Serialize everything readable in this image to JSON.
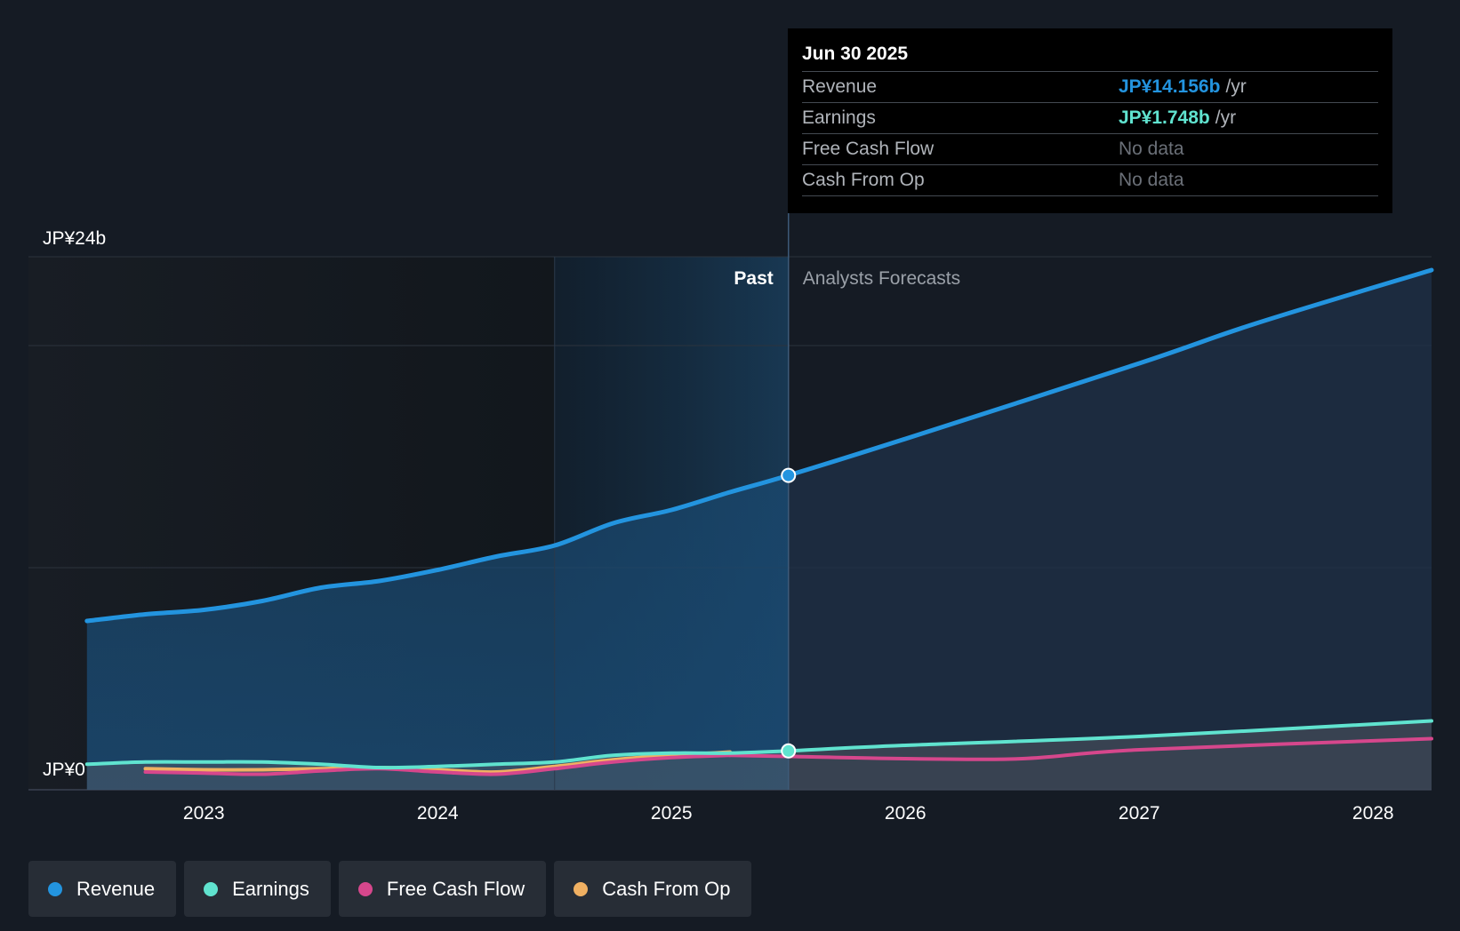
{
  "colors": {
    "revenue": "#2394df",
    "earnings": "#60e3cf",
    "free_cash_flow": "#d6478c",
    "cash_from_op": "#f0b062",
    "background": "#151b24"
  },
  "tooltip": {
    "date": "Jun 30 2025",
    "rows": [
      {
        "label": "Revenue",
        "value": "JP¥14.156b",
        "unit": "/yr"
      },
      {
        "label": "Earnings",
        "value": "JP¥1.748b",
        "unit": "/yr"
      },
      {
        "label": "Free Cash Flow",
        "value": "No data"
      },
      {
        "label": "Cash From Op",
        "value": "No data"
      }
    ]
  },
  "legend": [
    {
      "label": "Revenue",
      "icon": "revenue-dot-icon"
    },
    {
      "label": "Earnings",
      "icon": "earnings-dot-icon"
    },
    {
      "label": "Free Cash Flow",
      "icon": "free-cash-flow-dot-icon"
    },
    {
      "label": "Cash From Op",
      "icon": "cash-from-op-dot-icon"
    }
  ],
  "chart_data": {
    "type": "line",
    "title": "",
    "unit": "JP¥ billions",
    "ylim": [
      0,
      24
    ],
    "xlim": [
      2022.25,
      2028.25
    ],
    "y_tick_labels": {
      "top": "JP¥24b",
      "bottom": "JP¥0"
    },
    "gridlines": [
      0,
      10,
      20,
      24
    ],
    "x_ticks": [
      2023,
      2024,
      2025,
      2026,
      2027,
      2028
    ],
    "x_tick_labels": [
      "2023",
      "2024",
      "2025",
      "2026",
      "2027",
      "2028"
    ],
    "past_label": "Past",
    "forecast_label": "Analysts Forecasts",
    "highlight_start": 2024.5,
    "divider_x": 2025.5,
    "series": [
      {
        "name": "Revenue",
        "key": "revenue",
        "x": [
          2022.5,
          2022.75,
          2023.0,
          2023.25,
          2023.5,
          2023.75,
          2024.0,
          2024.25,
          2024.5,
          2024.75,
          2025.0,
          2025.25,
          2025.5
        ],
        "values": [
          7.6,
          7.9,
          8.1,
          8.5,
          9.1,
          9.4,
          9.9,
          10.5,
          11.0,
          12.0,
          12.6,
          13.4,
          14.156
        ],
        "forecast_x": [
          2025.5,
          2026.0,
          2027.0,
          2027.5,
          2028.25
        ],
        "forecast_values": [
          14.156,
          15.8,
          19.2,
          21.0,
          23.4
        ]
      },
      {
        "name": "Earnings",
        "key": "earnings",
        "x": [
          2022.5,
          2022.75,
          2023.0,
          2023.25,
          2023.5,
          2023.75,
          2024.0,
          2024.25,
          2024.5,
          2024.75,
          2025.0,
          2025.25,
          2025.5
        ],
        "values": [
          1.15,
          1.25,
          1.25,
          1.25,
          1.15,
          1.0,
          1.05,
          1.15,
          1.25,
          1.55,
          1.65,
          1.65,
          1.748
        ],
        "forecast_x": [
          2025.5,
          2026.0,
          2027.0,
          2028.25
        ],
        "forecast_values": [
          1.748,
          2.0,
          2.4,
          3.1
        ]
      },
      {
        "name": "Free Cash Flow",
        "key": "free_cash_flow",
        "x": [
          2022.75,
          2023.0,
          2023.25,
          2023.5,
          2023.75,
          2024.0,
          2024.25,
          2024.5,
          2024.75,
          2025.0,
          2025.25
        ],
        "values": [
          0.8,
          0.75,
          0.7,
          0.85,
          0.95,
          0.8,
          0.7,
          0.95,
          1.25,
          1.45,
          1.55
        ],
        "forecast_x": [
          2025.25,
          2025.5,
          2026.0,
          2026.5,
          2027.0,
          2028.25
        ],
        "forecast_values": [
          1.55,
          1.5,
          1.4,
          1.4,
          1.8,
          2.3
        ]
      },
      {
        "name": "Cash From Op",
        "key": "cash_from_op",
        "x": [
          2022.75,
          2023.0,
          2023.25,
          2023.5,
          2023.75,
          2024.0,
          2024.25,
          2024.5,
          2024.75,
          2025.0,
          2025.25
        ],
        "values": [
          0.95,
          0.9,
          0.9,
          0.95,
          1.0,
          0.9,
          0.8,
          1.05,
          1.35,
          1.55,
          1.7
        ]
      }
    ],
    "highlight_points": [
      {
        "series": "revenue",
        "x": 2025.5,
        "y": 14.156
      },
      {
        "series": "earnings",
        "x": 2025.5,
        "y": 1.748
      }
    ]
  }
}
